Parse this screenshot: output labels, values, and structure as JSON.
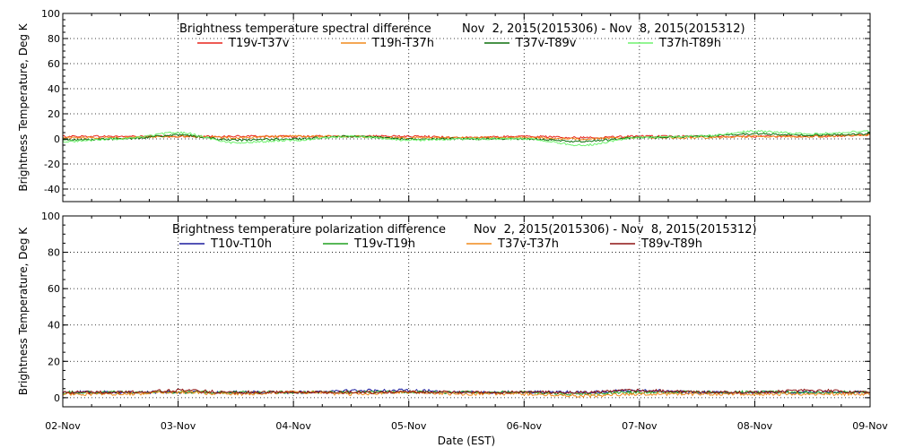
{
  "chart_data": [
    {
      "type": "line",
      "title": "Brightness temperature spectral difference",
      "date_range": "Nov  2, 2015(2015306) - Nov  8, 2015(2015312)",
      "ylabel": "Brightness Temperature, Deg K",
      "ylim": [
        -50,
        100
      ],
      "yticks": [
        -40,
        -20,
        0,
        20,
        40,
        60,
        80,
        100
      ],
      "xlim": [
        "2015-11-02",
        "2015-11-09"
      ],
      "grid": true,
      "legend_position": "top",
      "series": [
        {
          "name": "T19v-T37v",
          "color": "#e8231c",
          "x": [
            0,
            0.5,
            1,
            1.5,
            2,
            2.5,
            3,
            3.5,
            4,
            4.5,
            5,
            5.5,
            6,
            6.5,
            7
          ],
          "values": [
            2,
            2,
            2,
            2,
            2,
            2,
            2,
            1,
            2,
            1,
            2,
            2,
            2,
            2,
            3
          ]
        },
        {
          "name": "T19h-T37h",
          "color": "#f08a1c",
          "x": [
            0,
            0.5,
            1,
            1.5,
            2,
            2.5,
            3,
            3.5,
            4,
            4.5,
            5,
            5.5,
            6,
            6.5,
            7
          ],
          "values": [
            1,
            1,
            2,
            1,
            2,
            2,
            1,
            1,
            1,
            0,
            1,
            1,
            2,
            2,
            3
          ]
        },
        {
          "name": "T37v-T89v",
          "color": "#0c6e0c",
          "x": [
            0,
            0.5,
            1,
            1.5,
            2,
            2.5,
            3,
            3.5,
            4,
            4.5,
            5,
            5.5,
            6,
            6.5,
            7
          ],
          "values": [
            -1,
            0,
            3,
            -1,
            0,
            2,
            0,
            0,
            0,
            -2,
            1,
            2,
            4,
            3,
            4
          ]
        },
        {
          "name": "T37h-T89h",
          "color": "#6ef26e",
          "x": [
            0,
            0.5,
            1,
            1.5,
            2,
            2.5,
            3,
            3.5,
            4,
            4.5,
            5,
            5.5,
            6,
            6.5,
            7
          ],
          "values": [
            -2,
            0,
            5,
            -3,
            -1,
            2,
            -1,
            0,
            0,
            -5,
            1,
            2,
            6,
            4,
            6
          ]
        }
      ]
    },
    {
      "type": "line",
      "title": "Brightness temperature polarization difference",
      "date_range": "Nov  2, 2015(2015306) - Nov  8, 2015(2015312)",
      "ylabel": "Brightness Temperature, Deg K",
      "xlabel": "Date (EST)",
      "ylim": [
        -5,
        100
      ],
      "yticks": [
        0,
        20,
        40,
        60,
        80,
        100
      ],
      "xlim": [
        "2015-11-02",
        "2015-11-09"
      ],
      "xticks": [
        "02-Nov",
        "03-Nov",
        "04-Nov",
        "05-Nov",
        "06-Nov",
        "07-Nov",
        "08-Nov",
        "09-Nov"
      ],
      "grid": true,
      "legend_position": "top",
      "series": [
        {
          "name": "T10v-T10h",
          "color": "#1c1c9e",
          "x": [
            0,
            0.5,
            1,
            1.5,
            2,
            2.5,
            3,
            3.5,
            4,
            4.5,
            5,
            5.5,
            6,
            6.5,
            7
          ],
          "values": [
            3,
            3,
            3,
            3,
            3,
            4,
            4,
            3,
            3,
            3,
            4,
            3,
            3,
            3,
            3
          ]
        },
        {
          "name": "T19v-T19h",
          "color": "#20a020",
          "x": [
            0,
            0.5,
            1,
            1.5,
            2,
            2.5,
            3,
            3.5,
            4,
            4.5,
            5,
            5.5,
            6,
            6.5,
            7
          ],
          "values": [
            3,
            3,
            3,
            3,
            3,
            3,
            3,
            3,
            3,
            2,
            3,
            3,
            3,
            3,
            3
          ]
        },
        {
          "name": "T37v-T37h",
          "color": "#f08a1c",
          "x": [
            0,
            0.5,
            1,
            1.5,
            2,
            2.5,
            3,
            3.5,
            4,
            4.5,
            5,
            5.5,
            6,
            6.5,
            7
          ],
          "values": [
            2,
            2,
            3,
            2,
            3,
            2,
            3,
            2,
            2,
            1,
            2,
            2,
            2,
            2,
            2
          ]
        },
        {
          "name": "T89v-T89h",
          "color": "#8e1414",
          "x": [
            0,
            0.5,
            1,
            1.5,
            2,
            2.5,
            3,
            3.5,
            4,
            4.5,
            5,
            5.5,
            6,
            6.5,
            7
          ],
          "values": [
            3,
            3,
            4,
            3,
            3,
            3,
            3,
            3,
            3,
            3,
            4,
            3,
            3,
            4,
            3
          ]
        }
      ]
    }
  ]
}
